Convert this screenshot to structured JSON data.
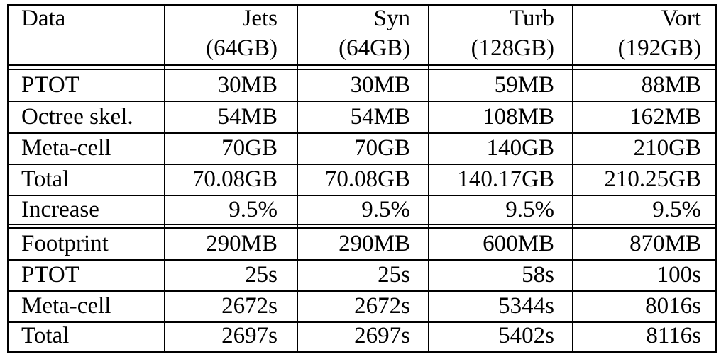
{
  "header": {
    "label": "Data",
    "columns": [
      {
        "name": "Jets",
        "size": "(64GB)"
      },
      {
        "name": "Syn",
        "size": "(64GB)"
      },
      {
        "name": "Turb",
        "size": "(128GB)"
      },
      {
        "name": "Vort",
        "size": "(192GB)"
      }
    ]
  },
  "sections": [
    {
      "rows": [
        {
          "label": "PTOT",
          "values": [
            "30MB",
            "30MB",
            "59MB",
            "88MB"
          ]
        },
        {
          "label": "Octree skel.",
          "values": [
            "54MB",
            "54MB",
            "108MB",
            "162MB"
          ]
        },
        {
          "label": "Meta-cell",
          "values": [
            "70GB",
            "70GB",
            "140GB",
            "210GB"
          ]
        },
        {
          "label": "Total",
          "values": [
            "70.08GB",
            "70.08GB",
            "140.17GB",
            "210.25GB"
          ]
        },
        {
          "label": "Increase",
          "values": [
            "9.5%",
            "9.5%",
            "9.5%",
            "9.5%"
          ]
        }
      ]
    },
    {
      "rows": [
        {
          "label": "Footprint",
          "values": [
            "290MB",
            "290MB",
            "600MB",
            "870MB"
          ]
        },
        {
          "label": "PTOT",
          "values": [
            "25s",
            "25s",
            "58s",
            "100s"
          ]
        },
        {
          "label": "Meta-cell",
          "values": [
            "2672s",
            "2672s",
            "5344s",
            "8016s"
          ]
        },
        {
          "label": "Total",
          "values": [
            "2697s",
            "2697s",
            "5402s",
            "8116s"
          ]
        }
      ]
    }
  ]
}
